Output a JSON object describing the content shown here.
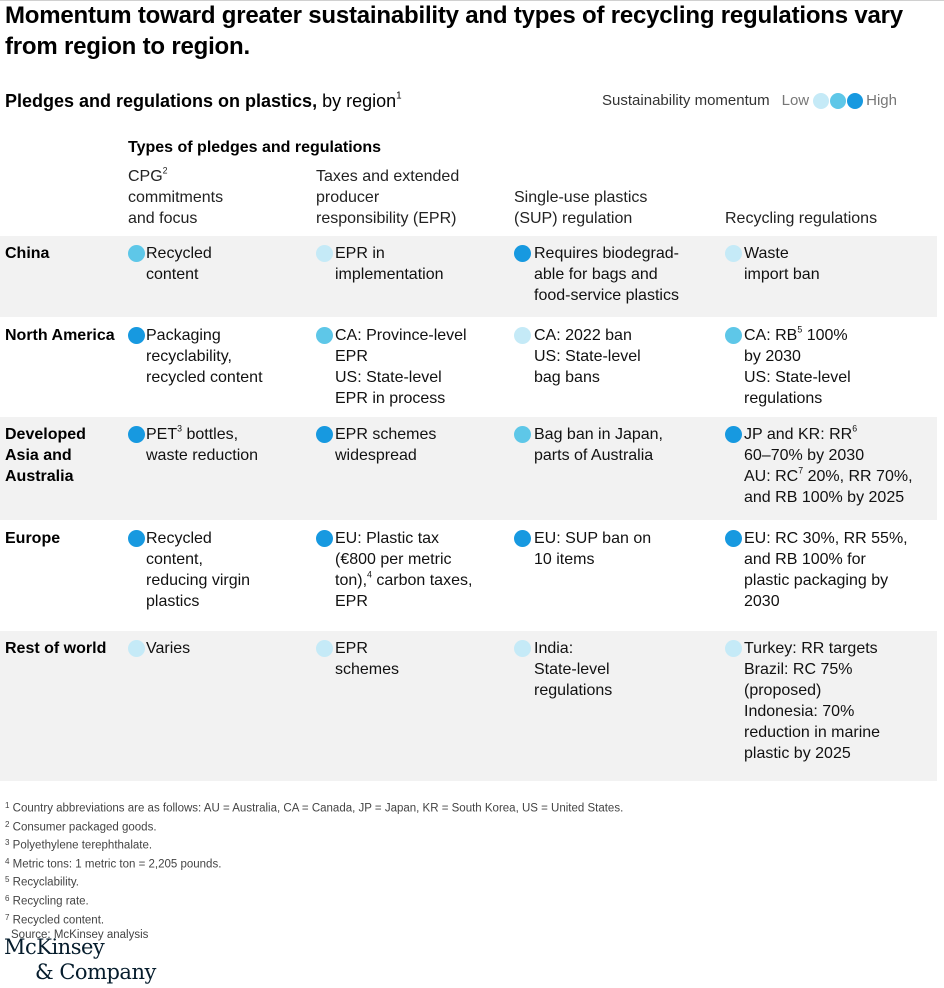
{
  "headline": "Momentum toward greater sustainability and types of recycling regulations vary from region to region.",
  "subtitle": {
    "bold": "Pledges and regulations on plastics,",
    "rest": " by region",
    "sup": "1"
  },
  "legend": {
    "label": "Sustainability momentum",
    "low": "Low",
    "high": "High"
  },
  "colors": {
    "low": "#c5eaf7",
    "medium": "#5ec7e8",
    "high": "#1799e0"
  },
  "types_title": "Types of pledges and regulations",
  "columns": [
    {
      "lines": [
        "CPG",
        "commitments",
        "and focus"
      ],
      "sup": "2"
    },
    {
      "lines": [
        "Taxes and extended",
        "producer",
        "responsibility (EPR)"
      ]
    },
    {
      "lines": [
        "Single-use plastics",
        "(SUP) regulation"
      ]
    },
    {
      "lines": [
        "Recycling regulations"
      ]
    }
  ],
  "rows": [
    {
      "region": "China",
      "cells": [
        {
          "level": "medium",
          "html": "Recycled<br>content"
        },
        {
          "level": "low",
          "html": "EPR in<br>implementation"
        },
        {
          "level": "high",
          "html": "Requires biodegrad-<br>able for bags and<br>food-service plastics"
        },
        {
          "level": "low",
          "html": "Waste<br>import ban"
        }
      ]
    },
    {
      "region": "North America",
      "cells": [
        {
          "level": "high",
          "html": "Packaging<br>recyclability,<br>recycled content"
        },
        {
          "level": "medium",
          "html": "CA: Province-level<br>EPR<br>US: State-level<br>EPR in process"
        },
        {
          "level": "low",
          "html": "CA: 2022 ban<br>US: State-level<br>bag bans"
        },
        {
          "level": "medium",
          "html": "CA: RB<sup>5</sup> 100%<br>by 2030<br>US: State-level<br>regulations"
        }
      ]
    },
    {
      "region": "Developed Asia and Australia",
      "cells": [
        {
          "level": "high",
          "html": "PET<sup>3</sup> bottles,<br>waste reduction"
        },
        {
          "level": "high",
          "html": "EPR schemes<br>widespread"
        },
        {
          "level": "medium",
          "html": "Bag ban in Japan,<br>parts of Australia"
        },
        {
          "level": "high",
          "html": "JP and KR: RR<sup>6</sup><br>60–70% by 2030<br>AU: RC<sup>7</sup> 20%, RR 70%,<br>and RB 100% by 2025"
        }
      ]
    },
    {
      "region": "Europe",
      "cells": [
        {
          "level": "high",
          "html": "Recycled<br>content,<br>reducing virgin<br>plastics"
        },
        {
          "level": "high",
          "html": "EU: Plastic tax<br>(€800 per metric<br>ton),<sup>4</sup> carbon taxes,<br>EPR"
        },
        {
          "level": "high",
          "html": "EU: SUP ban on<br>10 items"
        },
        {
          "level": "high",
          "html": "EU: RC 30%, RR 55%,<br>and RB 100% for<br>plastic packaging by<br>2030"
        }
      ]
    },
    {
      "region": "Rest of world",
      "cells": [
        {
          "level": "low",
          "html": "Varies"
        },
        {
          "level": "low",
          "html": "EPR<br>schemes"
        },
        {
          "level": "low",
          "html": "India:<br>State-level<br>regulations"
        },
        {
          "level": "low",
          "html": "Turkey: RR targets<br>Brazil: RC 75%<br>(proposed)<br>Indonesia: 70%<br>reduction in marine<br>plastic by 2025"
        }
      ]
    }
  ],
  "footnotes": [
    {
      "mark": "1",
      "text": "Country abbreviations are as follows: AU = Australia, CA = Canada, JP = Japan, KR = South Korea, US = United States."
    },
    {
      "mark": "2",
      "text": "Consumer packaged goods."
    },
    {
      "mark": "3",
      "text": "Polyethylene terephthalate."
    },
    {
      "mark": "4",
      "text": "Metric tons: 1 metric ton = 2,205 pounds."
    },
    {
      "mark": "5",
      "text": "Recyclability."
    },
    {
      "mark": "6",
      "text": "Recycling rate."
    },
    {
      "mark": "7",
      "text": "Recycled content."
    }
  ],
  "source": "Source: McKinsey analysis",
  "logo": [
    "McKinsey",
    "& Company"
  ]
}
